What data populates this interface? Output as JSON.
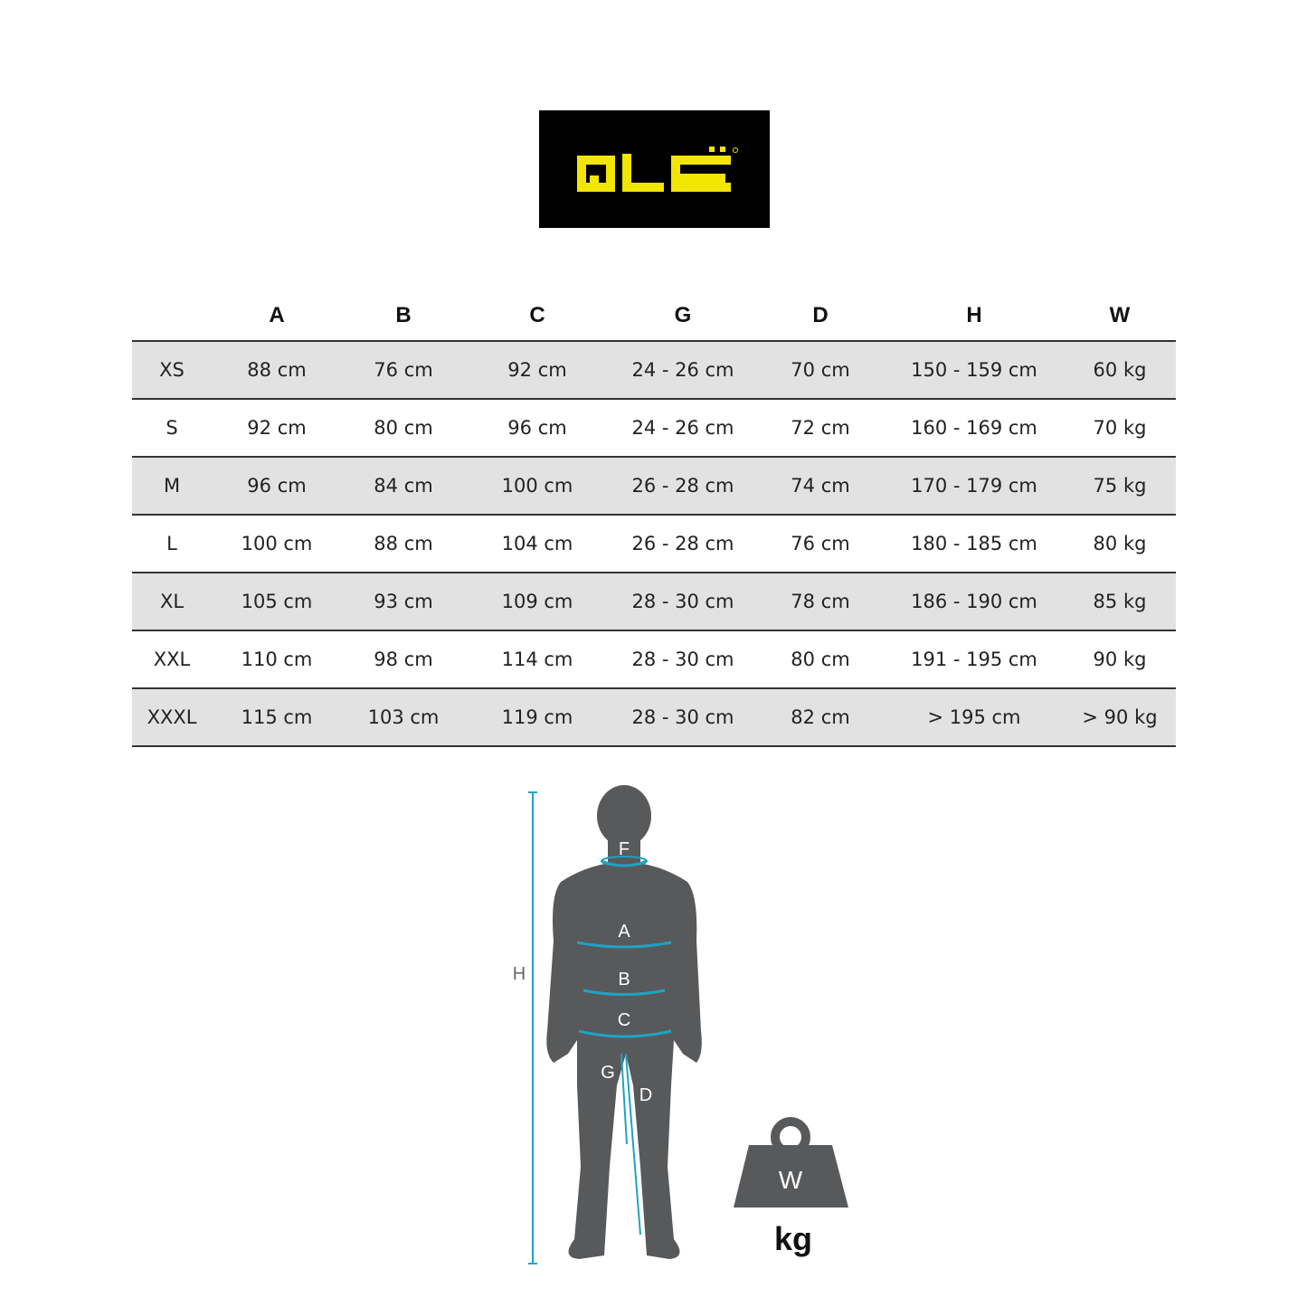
{
  "brand": {
    "logo_text": "ALÉ",
    "colors": {
      "logo_bg": "#000000",
      "logo_fg": "#f2e500"
    }
  },
  "table": {
    "headers": [
      "",
      "A",
      "B",
      "C",
      "G",
      "D",
      "H",
      "W"
    ],
    "rows": [
      [
        "XS",
        "88 cm",
        "76 cm",
        "92 cm",
        "24 - 26 cm",
        "70 cm",
        "150 - 159 cm",
        "60 kg"
      ],
      [
        "S",
        "92 cm",
        "80 cm",
        "96 cm",
        "24 - 26 cm",
        "72 cm",
        "160 - 169 cm",
        "70 kg"
      ],
      [
        "M",
        "96 cm",
        "84 cm",
        "100 cm",
        "26 - 28 cm",
        "74 cm",
        "170 - 179 cm",
        "75 kg"
      ],
      [
        "L",
        "100 cm",
        "88 cm",
        "104 cm",
        "26 - 28 cm",
        "76 cm",
        "180 - 185 cm",
        "80 kg"
      ],
      [
        "XL",
        "105 cm",
        "93 cm",
        "109 cm",
        "28 - 30 cm",
        "78 cm",
        "186 - 190 cm",
        "85 kg"
      ],
      [
        "XXL",
        "110 cm",
        "98 cm",
        "114 cm",
        "28 - 30 cm",
        "80 cm",
        "191 - 195 cm",
        "90 kg"
      ],
      [
        "XXXL",
        "115 cm",
        "103 cm",
        "119 cm",
        "28 - 30 cm",
        "82 cm",
        "> 195 cm",
        "> 90 kg"
      ]
    ]
  },
  "figure": {
    "labels": {
      "F": "F",
      "A": "A",
      "B": "B",
      "C": "C",
      "G": "G",
      "D": "D",
      "H": "H",
      "W": "W"
    },
    "weight_unit": "kg",
    "colors": {
      "silhouette": "#58595b",
      "measure": "#1fa3c4"
    }
  }
}
